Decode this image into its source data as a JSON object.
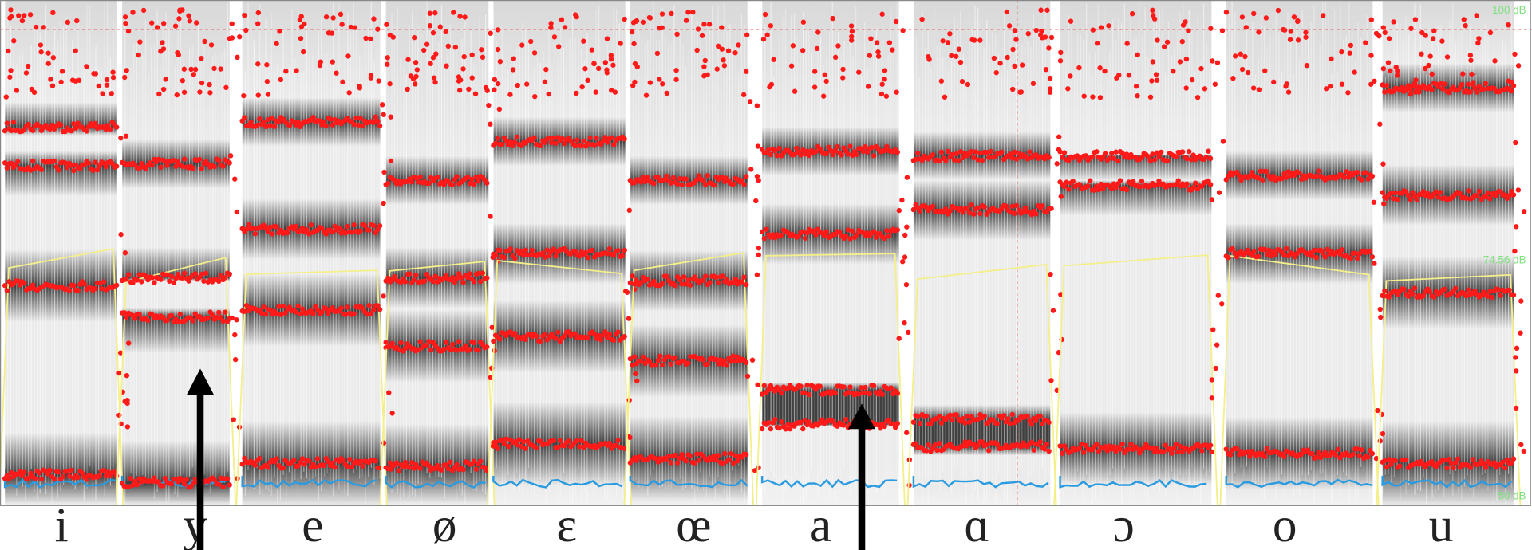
{
  "intensity_scale": {
    "top": "100 dB",
    "middle": "74.56 dB",
    "bottom": "50 dB"
  },
  "vowels": [
    "i",
    "y",
    "e",
    "ø",
    "ɛ",
    "œ",
    "a",
    "ɑ",
    "ɔ",
    "o",
    "u"
  ]
}
